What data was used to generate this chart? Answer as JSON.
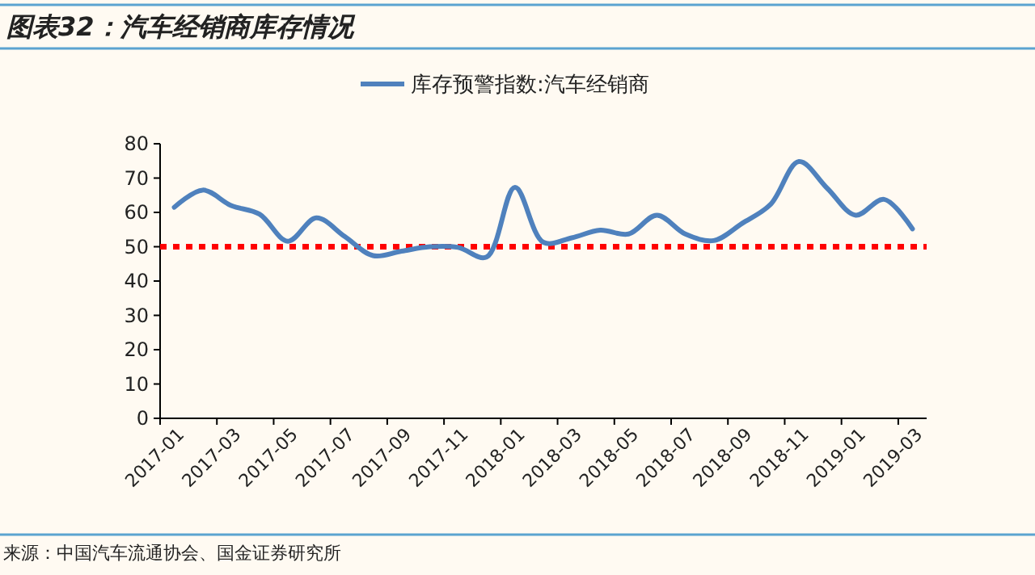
{
  "chart_data": {
    "type": "line",
    "title": "图表32：汽车经销商库存情况",
    "categories": [
      "2017-01",
      null,
      "2017-03",
      null,
      "2017-05",
      null,
      "2017-07",
      null,
      "2017-09",
      null,
      "2017-11",
      null,
      "2018-01",
      null,
      "2018-03",
      null,
      "2018-05",
      null,
      "2018-07",
      null,
      "2018-09",
      null,
      "2018-11",
      null,
      "2019-01",
      null,
      "2019-03"
    ],
    "series": [
      {
        "name": "库存预警指数:汽车经销商",
        "color": "#4f81bd",
        "values": [
          61.5,
          66.5,
          62,
          59.5,
          51.6,
          58.4,
          53,
          47.4,
          48.7,
          50,
          49.8,
          47,
          67.3,
          51.3,
          52.6,
          54.8,
          53.7,
          59.2,
          53.7,
          51.8,
          56.8,
          62.3,
          74.8,
          67,
          59.2,
          63.8,
          55.2
        ]
      }
    ],
    "ylim": [
      0,
      80
    ],
    "yticks": [
      0,
      10,
      20,
      30,
      40,
      50,
      60,
      70,
      80
    ],
    "ref_lines": [
      {
        "axis": "y",
        "value": 50,
        "color": "#ff0000",
        "line_style": "dotted"
      }
    ],
    "legend": "top",
    "grid": false,
    "marker": "none",
    "line_style": "solid",
    "annotations": [
      "来源：中国汽车流通协会、国金证券研究所"
    ]
  }
}
